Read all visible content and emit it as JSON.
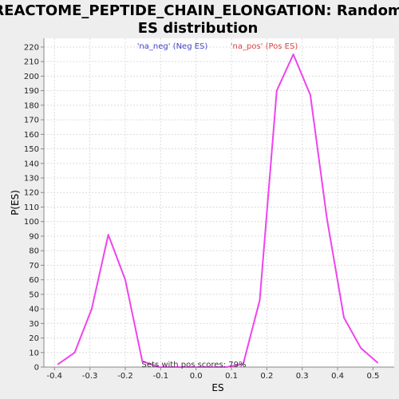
{
  "chart_data": {
    "type": "line",
    "title_line1": "REACTOME_PEPTIDE_CHAIN_ELONGATION: Random",
    "title_line2": "ES distribution",
    "xlabel": "ES",
    "ylabel": "P(ES)",
    "xlim": [
      -0.43,
      0.56
    ],
    "ylim": [
      0,
      226
    ],
    "xticks": [
      "-0.4",
      "-0.3",
      "-0.2",
      "-0.1",
      "0.0",
      "0.1",
      "0.2",
      "0.3",
      "0.4",
      "0.5"
    ],
    "yticks": [
      0,
      10,
      20,
      30,
      40,
      50,
      60,
      70,
      80,
      90,
      100,
      110,
      120,
      130,
      140,
      150,
      160,
      170,
      180,
      190,
      200,
      210,
      220
    ],
    "grid": true,
    "legend": [
      {
        "label": "'na_neg' (Neg ES)",
        "color": "#4444cc"
      },
      {
        "label": "'na_pos' (Pos ES)",
        "color": "#dd4444"
      }
    ],
    "annotation": "Sets with pos scores: 79%",
    "series": [
      {
        "color": "#ee44ee",
        "x": [
          -0.39,
          -0.343,
          -0.295,
          -0.248,
          -0.2,
          -0.152,
          -0.105,
          -0.058,
          -0.01,
          0.038,
          0.085,
          0.133,
          0.18,
          0.228,
          0.275,
          0.323,
          0.37,
          0.418,
          0.466,
          0.513
        ],
        "y": [
          2,
          10,
          40,
          91,
          60,
          4,
          0,
          0,
          0,
          0,
          0,
          2,
          46,
          190,
          215,
          187,
          102,
          34,
          13,
          3
        ]
      }
    ]
  }
}
